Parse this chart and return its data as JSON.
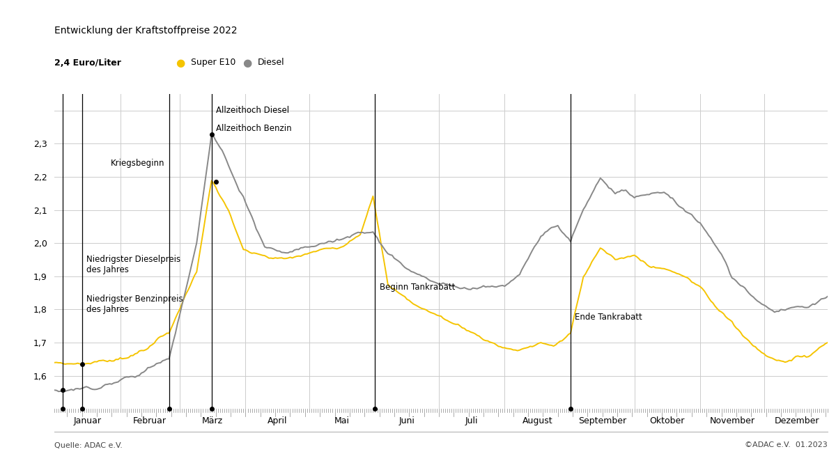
{
  "title": "Entwicklung der Kraftstoffpreise 2022",
  "ylabel": "2,4 Euro/Liter",
  "source_left": "Quelle: ADAC e.V.",
  "source_right": "©ADAC e.V.  01.2023",
  "legend_labels": [
    "Super E10",
    "Diesel"
  ],
  "legend_colors": [
    "#F5C400",
    "#888888"
  ],
  "line_colors": [
    "#F5C400",
    "#888888"
  ],
  "months": [
    "Januar",
    "Februar",
    "März",
    "April",
    "Mai",
    "Juni",
    "Juli",
    "August",
    "September",
    "Oktober",
    "November",
    "Dezember"
  ],
  "ylim": [
    1.5,
    2.45
  ],
  "yticks": [
    1.6,
    1.7,
    1.8,
    1.9,
    2.0,
    2.1,
    2.2,
    2.3
  ],
  "background_color": "#FFFFFF",
  "grid_color": "#CCCCCC",
  "month_starts_day": [
    1,
    32,
    60,
    91,
    121,
    152,
    182,
    213,
    244,
    274,
    305,
    335,
    366
  ]
}
